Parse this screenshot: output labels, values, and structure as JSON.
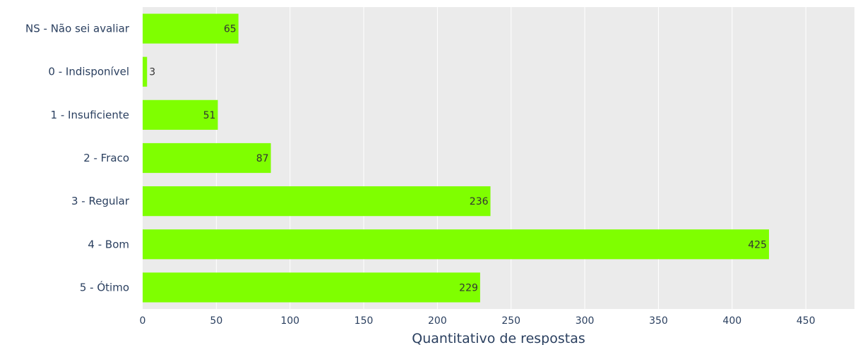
{
  "chart_data": {
    "type": "bar",
    "orientation": "horizontal",
    "categories": [
      "NS - Não sei avaliar",
      "0 - Indisponível",
      "1 - Insuficiente",
      "2 - Fraco",
      "3 - Regular",
      "4 - Bom",
      "5 - Ótimo"
    ],
    "values": [
      65,
      3,
      51,
      87,
      236,
      425,
      229
    ],
    "xlabel": "Quantitativo de respostas",
    "ylabel": "",
    "xlim": [
      0,
      483
    ],
    "xticks": [
      0,
      50,
      100,
      150,
      200,
      250,
      300,
      350,
      400,
      450
    ],
    "grid": true,
    "bar_color": "#7fff00",
    "plot_background": "#ebebeb",
    "gridline_color": "#ffffff"
  }
}
